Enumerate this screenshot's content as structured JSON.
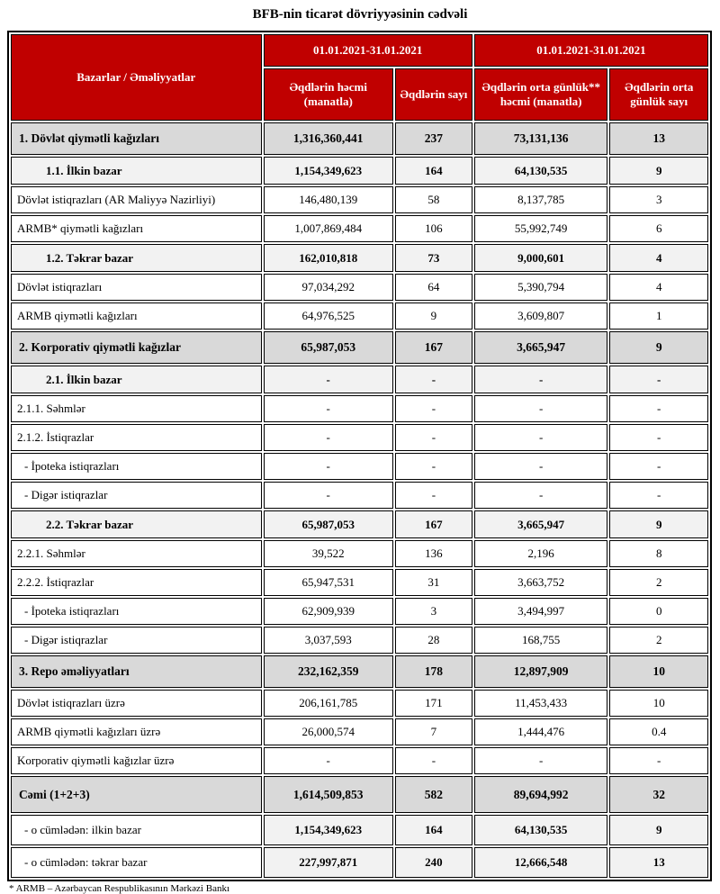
{
  "title": "BFB-nin ticarət dövriyyəsinin cədvəli",
  "colors": {
    "header_red": "#C00000",
    "section_gray": "#D9D9D9",
    "subsection_gray": "#F2F2F2",
    "border_black": "#000000"
  },
  "table": {
    "corner_label": "Bazarlar / Əməliyyatlar",
    "period_headers": [
      "01.01.2021-31.01.2021",
      "01.01.2021-31.01.2021"
    ],
    "column_headers": [
      "Əqdlərin həcmi (manatla)",
      "Əqdlərin sayı",
      "Əqdlərin orta günlük** həcmi (manatla)",
      "Əqdlərin orta günlük sayı"
    ],
    "rows": [
      {
        "label": "1. Dövlət qiymətli kağızları",
        "style": "section",
        "values": [
          "1,316,360,441",
          "237",
          "73,131,136",
          "13"
        ]
      },
      {
        "label": "1.1. İlkin bazar",
        "style": "subsection",
        "values": [
          "1,154,349,623",
          "164",
          "64,130,535",
          "9"
        ]
      },
      {
        "label": "Dövlət istiqrazları (AR Maliyyə Nazirliyi)",
        "style": "detail",
        "values": [
          "146,480,139",
          "58",
          "8,137,785",
          "3"
        ]
      },
      {
        "label": "ARMB* qiymətli kağızları",
        "style": "detail",
        "values": [
          "1,007,869,484",
          "106",
          "55,992,749",
          "6"
        ]
      },
      {
        "label": "1.2. Təkrar bazar",
        "style": "subsection",
        "values": [
          "162,010,818",
          "73",
          "9,000,601",
          "4"
        ]
      },
      {
        "label": "Dövlət istiqrazları",
        "style": "detail",
        "values": [
          "97,034,292",
          "64",
          "5,390,794",
          "4"
        ]
      },
      {
        "label": "ARMB qiymətli kağızları",
        "style": "detail",
        "values": [
          "64,976,525",
          "9",
          "3,609,807",
          "1"
        ]
      },
      {
        "label": "2. Korporativ qiymətli kağızlar",
        "style": "section",
        "values": [
          "65,987,053",
          "167",
          "3,665,947",
          "9"
        ]
      },
      {
        "label": "2.1. İlkin bazar",
        "style": "subsection",
        "values": [
          "-",
          "-",
          "-",
          "-"
        ]
      },
      {
        "label": "2.1.1. Səhmlər",
        "style": "detail",
        "values": [
          "-",
          "-",
          "-",
          "-"
        ]
      },
      {
        "label": "2.1.2. İstiqrazlar",
        "style": "detail",
        "values": [
          "-",
          "-",
          "-",
          "-"
        ]
      },
      {
        "label": "- İpoteka istiqrazları",
        "style": "detail-dash",
        "values": [
          "-",
          "-",
          "-",
          "-"
        ]
      },
      {
        "label": "- Digər istiqrazlar",
        "style": "detail-dash",
        "values": [
          "-",
          "-",
          "-",
          "-"
        ]
      },
      {
        "label": "2.2. Təkrar bazar",
        "style": "subsection",
        "values": [
          "65,987,053",
          "167",
          "3,665,947",
          "9"
        ]
      },
      {
        "label": "2.2.1. Səhmlər",
        "style": "detail",
        "values": [
          "39,522",
          "136",
          "2,196",
          "8"
        ]
      },
      {
        "label": "2.2.2. İstiqrazlar",
        "style": "detail",
        "values": [
          "65,947,531",
          "31",
          "3,663,752",
          "2"
        ]
      },
      {
        "label": "- İpoteka istiqrazları",
        "style": "detail-dash",
        "values": [
          "62,909,939",
          "3",
          "3,494,997",
          "0"
        ]
      },
      {
        "label": "- Digər istiqrazlar",
        "style": "detail-dash",
        "values": [
          "3,037,593",
          "28",
          "168,755",
          "2"
        ]
      },
      {
        "label": "3. Repo əməliyyatları",
        "style": "section",
        "values": [
          "232,162,359",
          "178",
          "12,897,909",
          "10"
        ]
      },
      {
        "label": "Dövlət istiqrazları üzrə",
        "style": "detail",
        "values": [
          "206,161,785",
          "171",
          "11,453,433",
          "10"
        ]
      },
      {
        "label": "ARMB qiymətli kağızları üzrə",
        "style": "detail",
        "values": [
          "26,000,574",
          "7",
          "1,444,476",
          "0.4"
        ]
      },
      {
        "label": "Korporativ qiymətli kağızlar üzrə",
        "style": "detail",
        "values": [
          "-",
          "-",
          "-",
          "-"
        ]
      },
      {
        "label": "Cəmi (1+2+3)",
        "style": "total",
        "values": [
          "1,614,509,853",
          "582",
          "89,694,992",
          "32"
        ]
      },
      {
        "label": "- o cümlədən: ilkin bazar",
        "style": "total-sub",
        "values": [
          "1,154,349,623",
          "164",
          "64,130,535",
          "9"
        ]
      },
      {
        "label": "- o cümlədən: təkrar bazar",
        "style": "total-sub",
        "values": [
          "227,997,871",
          "240",
          "12,666,548",
          "13"
        ]
      }
    ],
    "footnote": "* ARMB – Azərbaycan Respublikasının Mərkəzi Bankı"
  }
}
